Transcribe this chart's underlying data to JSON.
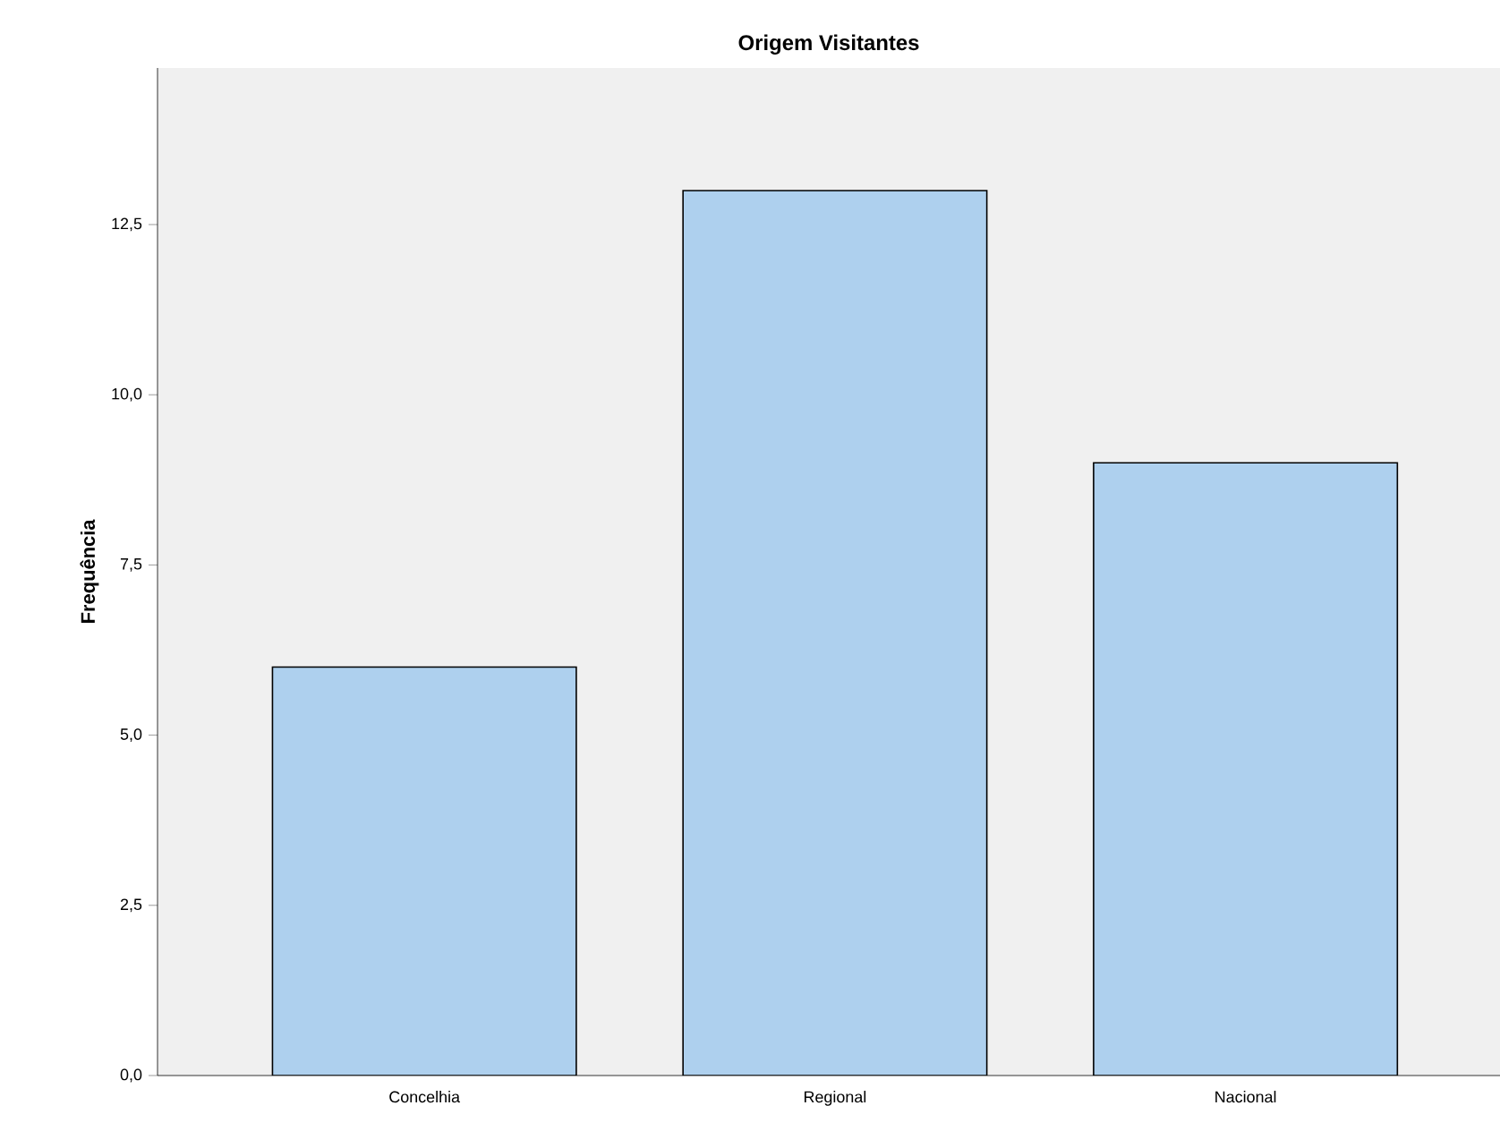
{
  "chart_data": {
    "type": "bar",
    "title": "Origem Visitantes",
    "ylabel": "Frequência",
    "categories": [
      "Concelhia",
      "Regional",
      "Nacional"
    ],
    "values": [
      6,
      13,
      9
    ],
    "color": "#aed0ee",
    "ylim": [
      0,
      14.8
    ],
    "yticks": [
      {
        "value": 0,
        "label": "0,0"
      },
      {
        "value": 2.5,
        "label": "2,5"
      },
      {
        "value": 5,
        "label": "5,0"
      },
      {
        "value": 7.5,
        "label": "7,5"
      },
      {
        "value": 10,
        "label": "10,0"
      },
      {
        "value": 12.5,
        "label": "12,5"
      }
    ],
    "grid": false
  }
}
